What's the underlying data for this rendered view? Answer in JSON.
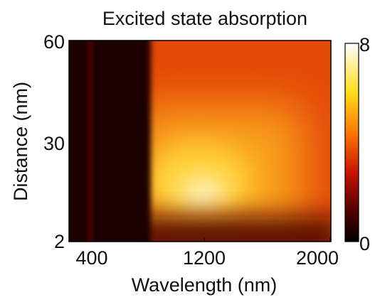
{
  "chart_data": {
    "type": "heatmap",
    "title": "Excited state absorption",
    "xlabel": "Wavelength (nm)",
    "ylabel": "Distance (nm)",
    "x_ticks": [
      "400",
      "1200",
      "2000"
    ],
    "y_ticks": [
      "2",
      "30",
      "60"
    ],
    "xlim": [
      300,
      2000
    ],
    "ylim": [
      2,
      60
    ],
    "colorbar": {
      "ticks": [
        "0",
        "8"
      ],
      "range": [
        0,
        8
      ],
      "colormap": "hot"
    },
    "features": [
      {
        "kind": "bright-ridge",
        "x_center": 480,
        "x_width": 20,
        "value": 1.6
      },
      {
        "kind": "dark-band",
        "x_from": 300,
        "x_to": 800,
        "value": 0.1
      },
      {
        "kind": "peak",
        "x": 1200,
        "y": 10,
        "value": 8
      },
      {
        "kind": "background",
        "value": 5
      }
    ]
  }
}
